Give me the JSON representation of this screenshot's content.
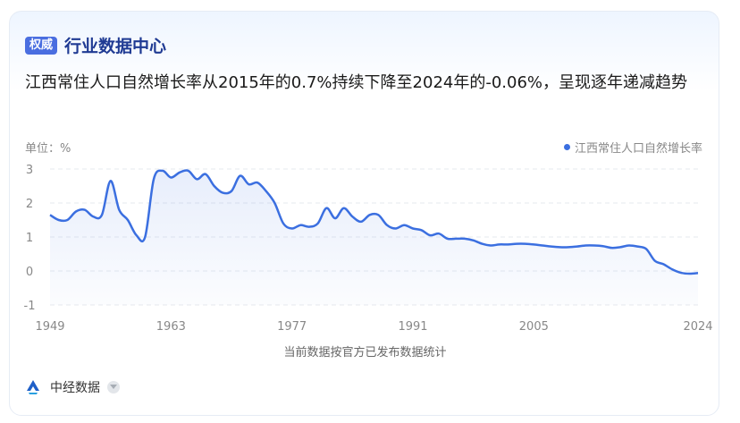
{
  "header": {
    "badge": "权威",
    "title": "行业数据中心"
  },
  "headline": "江西常住人口自然增长率从2015年的0.7%持续下降至2024年的-0.06%，呈现逐年递减趋势",
  "unit_label": "单位：%",
  "legend_label": "江西常住人口自然增长率",
  "note": "当前数据按官方已发布数据统计",
  "footer": {
    "source": "中经数据"
  },
  "colors": {
    "line": "#3b6fe0",
    "grid": "#e6e9ee",
    "tick": "#888888"
  },
  "chart_data": {
    "type": "area",
    "title": "江西常住人口自然增长率从2015年的0.7%持续下降至2024年的-0.06%，呈现逐年递减趋势",
    "ylabel": "单位：%",
    "xlabel": "",
    "ylim": [
      -1,
      3
    ],
    "yticks": [
      -1,
      0,
      1,
      2,
      3
    ],
    "xticks": [
      1949,
      1963,
      1977,
      1991,
      2005,
      2024
    ],
    "grid": true,
    "legend": "top-right",
    "series": [
      {
        "name": "江西常住人口自然增长率",
        "x": [
          1949,
          1950,
          1951,
          1952,
          1953,
          1954,
          1955,
          1956,
          1957,
          1958,
          1959,
          1960,
          1961,
          1962,
          1963,
          1964,
          1965,
          1966,
          1967,
          1968,
          1969,
          1970,
          1971,
          1972,
          1973,
          1974,
          1975,
          1976,
          1977,
          1978,
          1979,
          1980,
          1981,
          1982,
          1983,
          1984,
          1985,
          1986,
          1987,
          1988,
          1989,
          1990,
          1991,
          1992,
          1993,
          1994,
          1995,
          1996,
          1997,
          1998,
          1999,
          2000,
          2001,
          2002,
          2003,
          2004,
          2005,
          2006,
          2007,
          2008,
          2009,
          2010,
          2011,
          2012,
          2013,
          2014,
          2015,
          2016,
          2017,
          2018,
          2019,
          2020,
          2021,
          2022,
          2023,
          2024
        ],
        "values": [
          1.65,
          1.5,
          1.5,
          1.75,
          1.8,
          1.6,
          1.65,
          2.65,
          1.8,
          1.5,
          1.05,
          1.0,
          2.7,
          2.95,
          2.75,
          2.9,
          2.95,
          2.7,
          2.85,
          2.5,
          2.3,
          2.35,
          2.8,
          2.55,
          2.6,
          2.35,
          2.0,
          1.4,
          1.25,
          1.35,
          1.3,
          1.4,
          1.85,
          1.55,
          1.85,
          1.6,
          1.45,
          1.65,
          1.65,
          1.35,
          1.25,
          1.35,
          1.25,
          1.2,
          1.05,
          1.1,
          0.95,
          0.95,
          0.95,
          0.9,
          0.8,
          0.75,
          0.78,
          0.78,
          0.8,
          0.8,
          0.78,
          0.75,
          0.72,
          0.7,
          0.7,
          0.72,
          0.75,
          0.75,
          0.73,
          0.68,
          0.7,
          0.75,
          0.72,
          0.65,
          0.3,
          0.2,
          0.05,
          -0.05,
          -0.08,
          -0.06
        ]
      }
    ]
  }
}
